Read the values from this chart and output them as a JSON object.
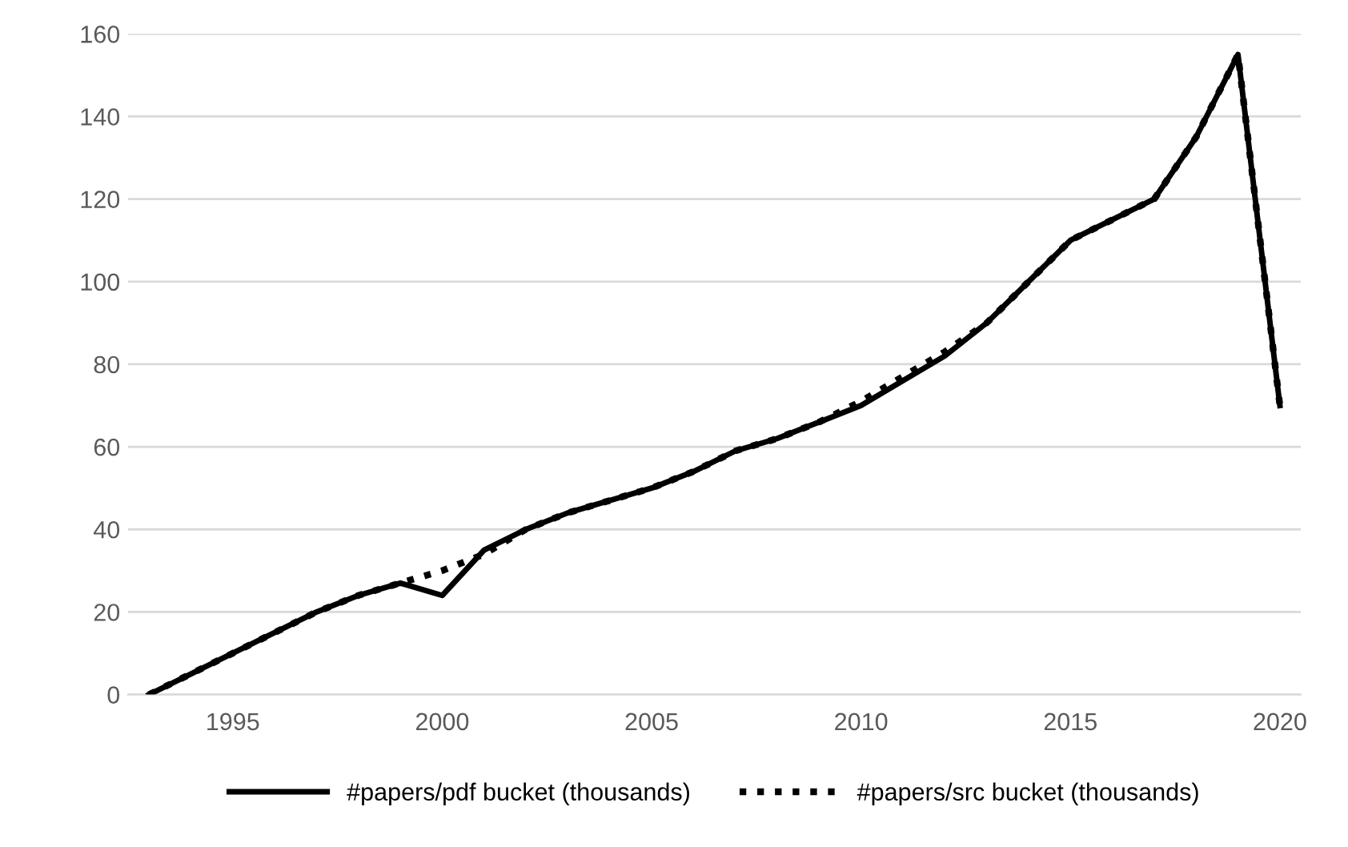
{
  "chart_data": {
    "type": "line",
    "x": [
      1993,
      1994,
      1995,
      1996,
      1997,
      1998,
      1999,
      2000,
      2001,
      2002,
      2003,
      2004,
      2005,
      2006,
      2007,
      2008,
      2009,
      2010,
      2011,
      2012,
      2013,
      2014,
      2015,
      2016,
      2017,
      2018,
      2019,
      2020
    ],
    "series": [
      {
        "name": "#papers/pdf bucket (thousands)",
        "color": "#000000",
        "line_style": "solid",
        "values": [
          0,
          5,
          10,
          15,
          20,
          24,
          27,
          24,
          35,
          40,
          44,
          47,
          50,
          54,
          59,
          62,
          66,
          70,
          76,
          82,
          90,
          100,
          110,
          115,
          120,
          135,
          155,
          70
        ]
      },
      {
        "name": "#papers/src bucket (thousands)",
        "color": "#000000",
        "line_style": "dotted",
        "values": [
          0,
          5,
          10,
          15,
          20,
          24,
          27,
          30,
          34,
          40,
          44,
          47,
          50,
          54,
          59,
          62,
          66,
          71,
          77,
          83,
          90,
          100,
          110,
          115,
          120,
          135,
          155,
          70
        ]
      }
    ],
    "xlim": [
      1992.5,
      2020.5
    ],
    "xticks": [
      1995,
      2000,
      2005,
      2010,
      2015,
      2020
    ],
    "ylim": [
      0,
      160
    ],
    "yticks": [
      0,
      20,
      40,
      60,
      80,
      100,
      120,
      140,
      160
    ],
    "grid": "y",
    "legend": "bottom",
    "marker": "none"
  }
}
